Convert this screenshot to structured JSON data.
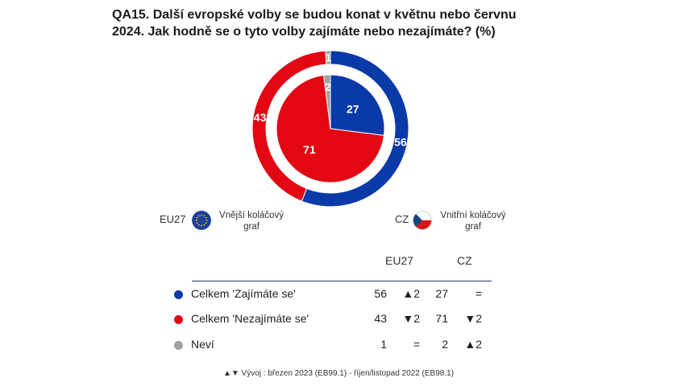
{
  "title_lines": [
    "QA15. Další evropské volby se budou konat v květnu nebo červnu",
    "2024. Jak hodně se o tyto volby zajímáte nebo nezajímáte? (%)"
  ],
  "legend": {
    "outer_code": "EU27",
    "outer_label_1": "Vnější koláčový",
    "outer_label_2": "graf",
    "inner_code": "CZ",
    "inner_label_1": "Vnitřní koláčový",
    "inner_label_2": "graf"
  },
  "table": {
    "col_eu": "EU27",
    "col_cz": "CZ",
    "rows": [
      {
        "label": "Celkem 'Zajímáte se'",
        "eu": "56",
        "eu_change": "▲2",
        "cz": "27",
        "cz_change": "=",
        "color": "#0a3aa8"
      },
      {
        "label": "Celkem 'Nezajímáte se'",
        "eu": "43",
        "eu_change": "▼2",
        "cz": "71",
        "cz_change": "▼2",
        "color": "#e30613"
      },
      {
        "label": "Neví",
        "eu": "1",
        "eu_change": "=",
        "cz": "2",
        "cz_change": "▲2",
        "color": "#a0a0a0"
      }
    ]
  },
  "footer": "▲▼ Vývoj : březen 2023 (EB99.1) - říjen/listopad 2022 (EB98.1)",
  "chart_data": {
    "type": "pie",
    "categories": [
      "Celkem 'Zajímáte se'",
      "Celkem 'Nezajímáte se'",
      "Neví"
    ],
    "colors": [
      "#0a3aa8",
      "#e30613",
      "#a0a0a0"
    ],
    "series": [
      {
        "name": "EU27",
        "ring": "outer",
        "values": [
          56,
          43,
          1
        ]
      },
      {
        "name": "CZ",
        "ring": "inner",
        "values": [
          27,
          71,
          2
        ]
      }
    ]
  }
}
